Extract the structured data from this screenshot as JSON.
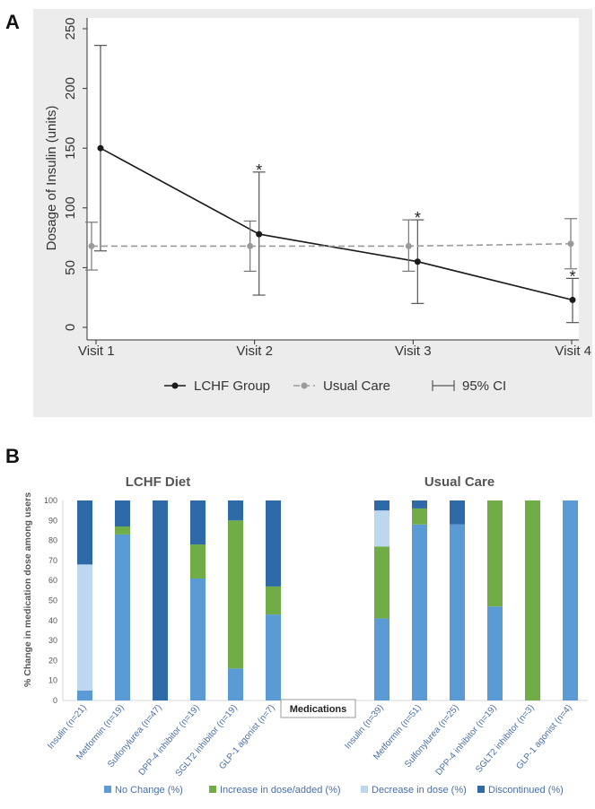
{
  "panels": {
    "a": "A",
    "b": "B"
  },
  "chart_data": [
    {
      "type": "line",
      "ylabel": "Dosage of Insulin (units)",
      "categories": [
        "Visit 1",
        "Visit 2",
        "Visit 3",
        "Visit 4"
      ],
      "ylim": [
        0,
        250
      ],
      "yticks": [
        0,
        50,
        100,
        150,
        200,
        250
      ],
      "series": [
        {
          "name": "LCHF Group",
          "color": "#1a1a1a",
          "style": "solid",
          "values": [
            150,
            78,
            55,
            23
          ],
          "ci_low": [
            64,
            27,
            20,
            4
          ],
          "ci_high": [
            236,
            130,
            90,
            41
          ],
          "significant": [
            false,
            true,
            true,
            true
          ]
        },
        {
          "name": "Usual Care",
          "color": "#9a9a9a",
          "style": "dashed",
          "values": [
            68,
            68,
            68,
            70
          ],
          "ci_low": [
            48,
            47,
            47,
            49
          ],
          "ci_high": [
            88,
            89,
            90,
            91
          ],
          "significant": [
            false,
            false,
            false,
            false
          ]
        }
      ],
      "legend": [
        "LCHF Group",
        "Usual Care",
        "95% CI"
      ],
      "annotation": "*",
      "grid": false
    },
    {
      "type": "bar",
      "stacked": true,
      "ylabel": "% Change in medication dose among users",
      "ylim": [
        0,
        100
      ],
      "yticks": [
        0,
        10,
        20,
        30,
        40,
        50,
        60,
        70,
        80,
        90,
        100
      ],
      "xlabel": "Medications",
      "groups": [
        {
          "title": "LCHF Diet",
          "categories": [
            "Insulin (n=21)",
            "Metformin (n=19)",
            "Sulfonylurea (n=47)",
            "DPP-4 inhibitor (n=19)",
            "SGLT2 inhibitor (n=19)",
            "GLP-1 agonist (n=7)"
          ],
          "series": [
            {
              "name": "No Change (%)",
              "values": [
                5,
                83,
                0,
                61,
                16,
                43
              ]
            },
            {
              "name": "Increase in dose/added (%)",
              "values": [
                0,
                4,
                0,
                17,
                74,
                14
              ]
            },
            {
              "name": "Decrease in dose (%)",
              "values": [
                63,
                0,
                0,
                0,
                0,
                0
              ]
            },
            {
              "name": "Discontinued (%)",
              "values": [
                32,
                13,
                100,
                22,
                10,
                43
              ]
            }
          ]
        },
        {
          "title": "Usual Care",
          "categories": [
            "Insulin (n=39)",
            "Metformin (n=51)",
            "Sulfonylurea (n=25)",
            "DPP-4 inhibitor (n=19)",
            "SGLT2 inhibitor (n=3)",
            "GLP-1 agonist (n=4)"
          ],
          "series": [
            {
              "name": "No Change (%)",
              "values": [
                41,
                88,
                88,
                47,
                0,
                100
              ]
            },
            {
              "name": "Increase in dose/added (%)",
              "values": [
                36,
                8,
                0,
                53,
                100,
                0
              ]
            },
            {
              "name": "Decrease in dose (%)",
              "values": [
                18,
                0,
                0,
                0,
                0,
                0
              ]
            },
            {
              "name": "Discontinued (%)",
              "values": [
                5,
                4,
                12,
                0,
                0,
                0
              ]
            }
          ]
        }
      ],
      "colors": [
        "#5b9bd5",
        "#70ad47",
        "#bdd7ee",
        "#2e6aa8"
      ],
      "legend": [
        "No Change (%)",
        "Increase in dose/added (%)",
        "Decrease in dose (%)",
        "Discontinued (%)"
      ],
      "legend_position": "bottom"
    }
  ]
}
